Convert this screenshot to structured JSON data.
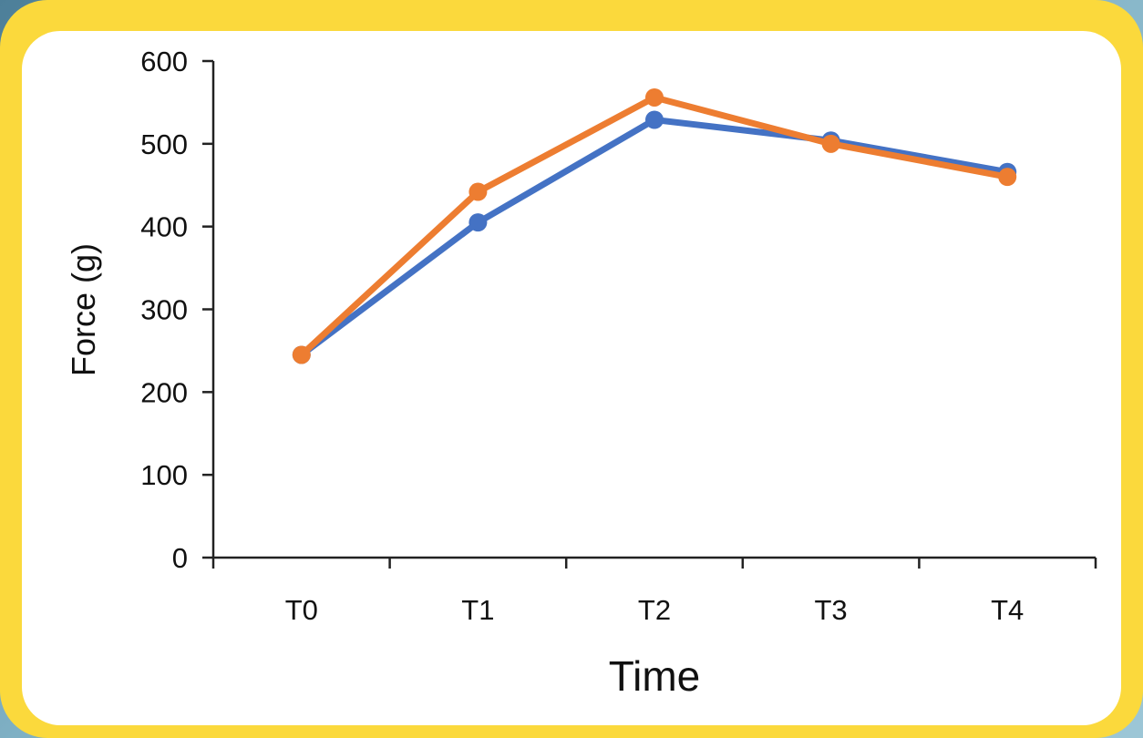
{
  "chart_data": {
    "type": "line",
    "title": "",
    "xlabel": "Time",
    "ylabel": "Force (g)",
    "categories": [
      "T0",
      "T1",
      "T2",
      "T3",
      "T4"
    ],
    "ylim": [
      0,
      600
    ],
    "yticks": [
      0,
      100,
      200,
      300,
      400,
      500,
      600
    ],
    "ytick_labels": [
      "0",
      "100",
      "200",
      "300",
      "400",
      "500",
      "600"
    ],
    "grid": false,
    "legend": "none",
    "series": [
      {
        "color": "#4472c4",
        "values": [
          245,
          405,
          529,
          504,
          466
        ]
      },
      {
        "color": "#ed7d31",
        "values": [
          245,
          442,
          556,
          500,
          460
        ]
      }
    ]
  },
  "frame": {
    "border_color": "#fbd93c",
    "panel_color": "#ffffff"
  }
}
